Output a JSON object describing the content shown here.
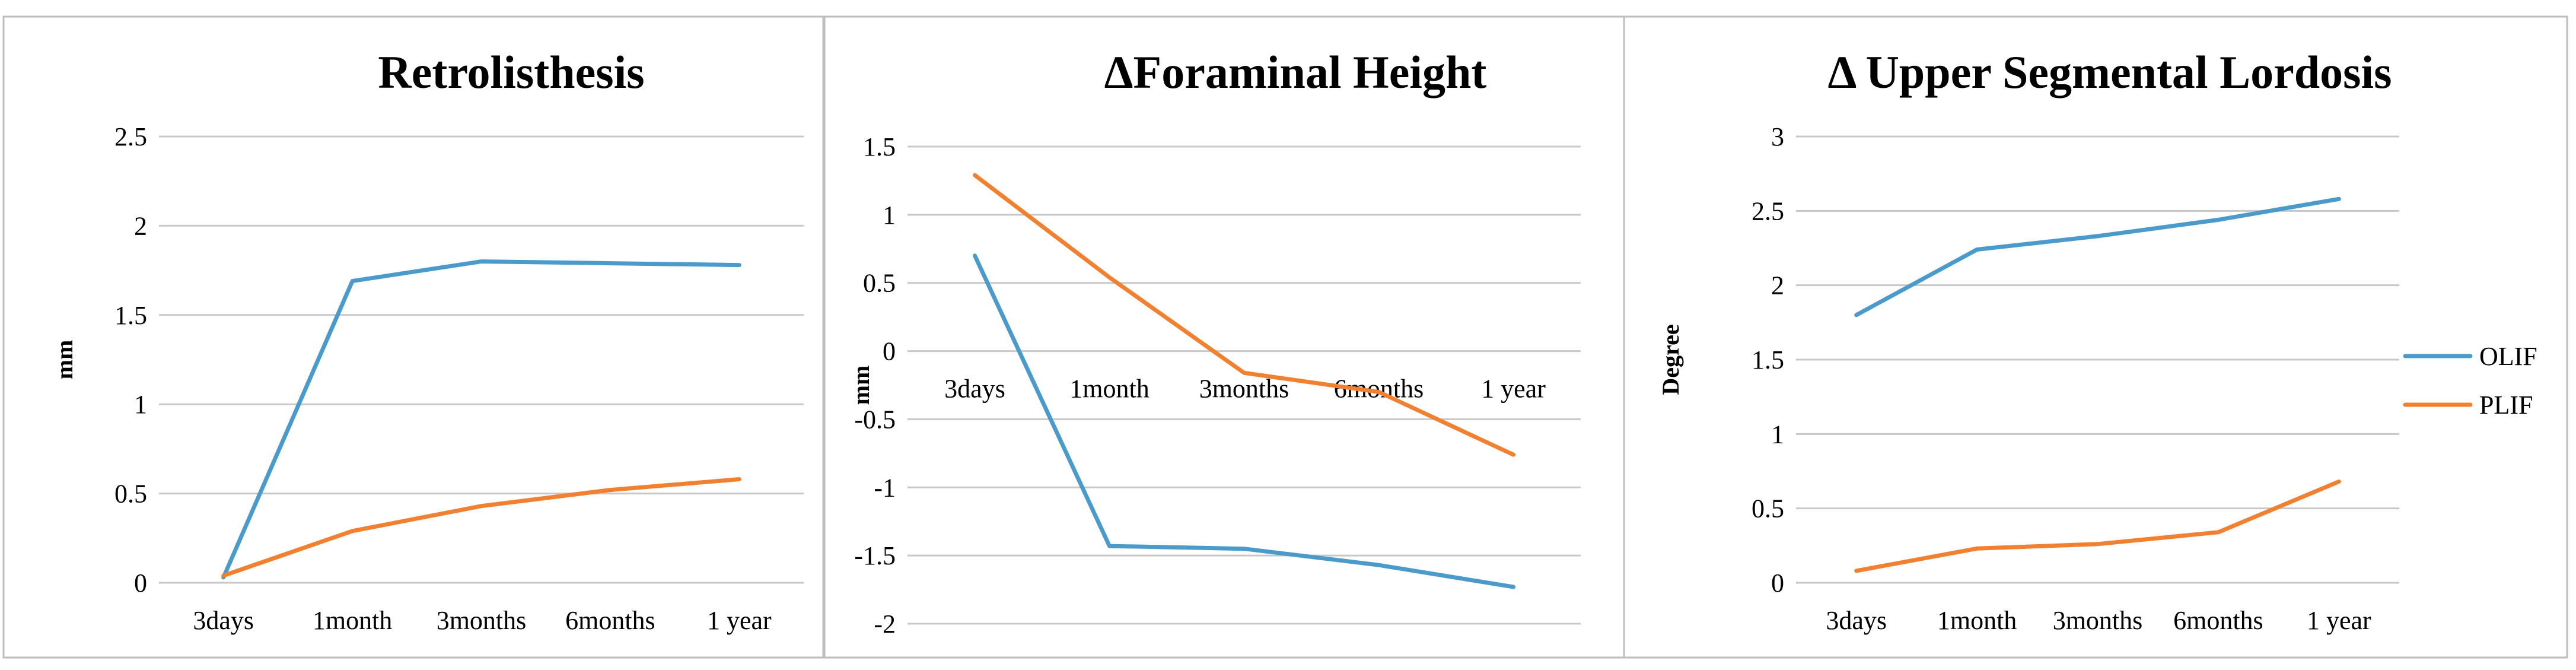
{
  "colors": {
    "OLIF": "#4a9acb",
    "PLIF": "#f18131",
    "grid": "#c8c8c8",
    "frame": "#bdbdbd"
  },
  "legend": {
    "position": "right",
    "entries": [
      {
        "name": "OLIF",
        "color": "#4a9acb"
      },
      {
        "name": "PLIF",
        "color": "#f18131"
      }
    ]
  },
  "chart_data": [
    {
      "type": "line",
      "title": "Retrolisthesis",
      "xlabel": "",
      "ylabel": "mm",
      "categories": [
        "3days",
        "1month",
        "3months",
        "6months",
        "1 year"
      ],
      "ylim": [
        0,
        2.5
      ],
      "yticks": [
        0,
        0.5,
        1,
        1.5,
        2,
        2.5
      ],
      "ytick_labels": [
        "0",
        "0.5",
        "1",
        "1.5",
        "2",
        "2.5"
      ],
      "grid": true,
      "series": [
        {
          "name": "OLIF",
          "color": "#4a9acb",
          "values": [
            0.03,
            1.69,
            1.8,
            1.79,
            1.78
          ]
        },
        {
          "name": "PLIF",
          "color": "#f18131",
          "values": [
            0.04,
            0.29,
            0.43,
            0.52,
            0.58
          ]
        }
      ]
    },
    {
      "type": "line",
      "title": "ΔForaminal Height",
      "xlabel": "",
      "ylabel": "mm",
      "categories": [
        "3days",
        "1month",
        "3months",
        "6months",
        "1 year"
      ],
      "ylim": [
        -2,
        1.5
      ],
      "yticks": [
        -2,
        -1.5,
        -1,
        -0.5,
        0,
        0.5,
        1,
        1.5
      ],
      "ytick_labels": [
        "-2",
        "-1.5",
        "-1",
        "-0.5",
        "0",
        "0.5",
        "1",
        "1.5"
      ],
      "grid": true,
      "series": [
        {
          "name": "OLIF",
          "color": "#4a9acb",
          "values": [
            0.7,
            -1.43,
            -1.45,
            -1.57,
            -1.73
          ]
        },
        {
          "name": "PLIF",
          "color": "#f18131",
          "values": [
            1.29,
            0.54,
            -0.16,
            -0.3,
            -0.76
          ]
        }
      ]
    },
    {
      "type": "line",
      "title": "Δ Upper Segmental Lordosis",
      "xlabel": "",
      "ylabel": "Degree",
      "categories": [
        "3days",
        "1month",
        "3months",
        "6months",
        "1 year"
      ],
      "ylim": [
        0,
        3
      ],
      "yticks": [
        0,
        0.5,
        1,
        1.5,
        2,
        2.5,
        3
      ],
      "ytick_labels": [
        "0",
        "0.5",
        "1",
        "1.5",
        "2",
        "2.5",
        "3"
      ],
      "grid": true,
      "series": [
        {
          "name": "OLIF",
          "color": "#4a9acb",
          "values": [
            1.8,
            2.24,
            2.33,
            2.44,
            2.58
          ]
        },
        {
          "name": "PLIF",
          "color": "#f18131",
          "values": [
            0.08,
            0.23,
            0.26,
            0.34,
            0.68
          ]
        }
      ]
    }
  ]
}
